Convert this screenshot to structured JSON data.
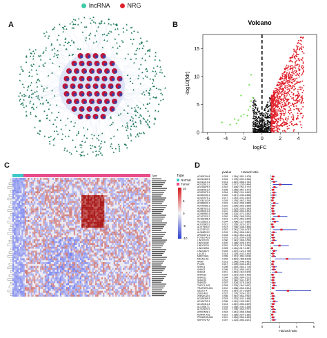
{
  "panels": {
    "a": {
      "letter": "A",
      "legend": [
        {
          "label": "lncRNA",
          "color": "#3ec9a7"
        },
        {
          "label": "NRG",
          "color": "#e0212b"
        }
      ],
      "outer_color": "#1f7a5c",
      "inner_color": "#c0163a",
      "inner_dot_color": "#3d3d9e"
    },
    "b": {
      "letter": "B",
      "chart_data": {
        "type": "scatter",
        "title": "Volcano",
        "xlabel": "logFC",
        "ylabel": "-log10(fdr)",
        "xlim": [
          -6.5,
          6
        ],
        "ylim": [
          0,
          17.5
        ],
        "xticks": [
          -6,
          -4,
          -2,
          0,
          2,
          4
        ],
        "yticks": [
          0,
          5,
          10,
          15
        ],
        "vline": 0,
        "series": [
          {
            "color": "#e0212b",
            "note": "up"
          },
          {
            "color": "#111111",
            "note": "ns"
          },
          {
            "color": "#7be35a",
            "note": "down"
          }
        ],
        "green_points": [
          [
            -3.5,
            1.4
          ],
          [
            -2.8,
            1.6
          ],
          [
            -4.4,
            1.8
          ],
          [
            -3.0,
            2.4
          ],
          [
            -2.3,
            2.9
          ],
          [
            -2.0,
            3.2
          ],
          [
            -1.5,
            4.0
          ],
          [
            -1.2,
            5.6
          ],
          [
            -1.0,
            6.2
          ],
          [
            -1.4,
            8.5
          ],
          [
            -1.2,
            10.3
          ],
          [
            -2.3,
            6.6
          ],
          [
            -1.6,
            3.0
          ],
          [
            -2.6,
            2.2
          ],
          [
            -1.3,
            4.6
          ]
        ]
      }
    },
    "c": {
      "letter": "C",
      "legend_title": "Type",
      "legend_items": [
        {
          "label": "Normal",
          "color": "#3ec9c9"
        },
        {
          "label": "Tumor",
          "color": "#e84d8a"
        }
      ],
      "colorbar_ticks": [
        "10",
        "5",
        "0",
        "-5",
        "-10"
      ],
      "type_label": "Type"
    },
    "d": {
      "letter": "D",
      "col_pvalue": "pvalue",
      "col_hr": "Hazard ratio",
      "xlabel": "Hazard ratio",
      "xticks": [
        "0",
        "2",
        "4",
        "6"
      ],
      "rows": [
        {
          "gene": "AC008764.8",
          "p": "0.003",
          "hr": "1.264(1.081-1.478)",
          "v": 1.26,
          "lo": 1.08,
          "hi": 1.48
        },
        {
          "gene": "AC011462.3",
          "p": "0.016",
          "hr": "1.178(1.031-1.346)",
          "v": 1.18,
          "lo": 1.03,
          "hi": 1.35
        },
        {
          "gene": "AC012213.3",
          "p": "0.014",
          "hr": "1.367(1.066-1.753)",
          "v": 1.37,
          "lo": 1.07,
          "hi": 1.75
        },
        {
          "gene": "AC015813.1",
          "p": "0.006",
          "hr": "2.077(1.235-3.494)",
          "v": 2.08,
          "lo": 1.24,
          "hi": 3.49
        },
        {
          "gene": "AC016876.2",
          "p": "0.001",
          "hr": "1.428(1.151-1.772)",
          "v": 1.43,
          "lo": 1.15,
          "hi": 1.77
        },
        {
          "gene": "AC020911.2",
          "p": "0.009",
          "hr": "1.248(1.057-1.474)",
          "v": 1.25,
          "lo": 1.06,
          "hi": 1.47
        },
        {
          "gene": "AC022679.1",
          "p": "0.004",
          "hr": "1.353(1.101-1.663)",
          "v": 1.35,
          "lo": 1.1,
          "hi": 1.66
        },
        {
          "gene": "AC023043.1",
          "p": "0.022",
          "hr": "1.317(1.040-1.668)",
          "v": 1.32,
          "lo": 1.04,
          "hi": 1.67
        },
        {
          "gene": "AC024575.1",
          "p": "0.017",
          "hr": "1.251(1.041-1.504)",
          "v": 1.25,
          "lo": 1.04,
          "hi": 1.5
        },
        {
          "gene": "AC034102.8",
          "p": "0.003",
          "hr": "1.193(1.062-1.340)",
          "v": 1.19,
          "lo": 1.06,
          "hi": 1.34
        },
        {
          "gene": "AC068631.2",
          "p": "0.019",
          "hr": "1.412(1.058-1.885)",
          "v": 1.41,
          "lo": 1.06,
          "hi": 1.89
        },
        {
          "gene": "AC079089.1",
          "p": "0.010",
          "hr": "1.290(1.063-1.566)",
          "v": 1.29,
          "lo": 1.06,
          "hi": 1.57
        },
        {
          "gene": "AC087623.3",
          "p": "0.016",
          "hr": "1.203(1.035-1.399)",
          "v": 1.2,
          "lo": 1.04,
          "hi": 1.4
        },
        {
          "gene": "AC093010.3",
          "p": "0.011",
          "hr": "1.254(1.053-1.493)",
          "v": 1.25,
          "lo": 1.05,
          "hi": 1.49
        },
        {
          "gene": "AC099850.3",
          "p": "0.008",
          "hr": "1.302(1.072-1.582)",
          "v": 1.3,
          "lo": 1.07,
          "hi": 1.58
        },
        {
          "gene": "AC107021.2",
          "p": "0.002",
          "hr": "1.925(1.269-2.920)",
          "v": 1.93,
          "lo": 1.27,
          "hi": 2.92
        },
        {
          "gene": "AC108488.4",
          "p": "0.013",
          "hr": "1.277(1.053-1.549)",
          "v": 1.28,
          "lo": 1.05,
          "hi": 1.55
        },
        {
          "gene": "AC115619.1",
          "p": "0.004",
          "hr": "1.458(1.127-1.886)",
          "v": 1.46,
          "lo": 1.13,
          "hi": 1.89
        },
        {
          "gene": "AL031985.3",
          "p": "0.021",
          "hr": "1.165(1.023-1.327)",
          "v": 1.17,
          "lo": 1.02,
          "hi": 1.33
        },
        {
          "gene": "AL117336.3",
          "p": "0.012",
          "hr": "1.236(1.048-1.458)",
          "v": 1.24,
          "lo": 1.05,
          "hi": 1.46
        },
        {
          "gene": "AL121974.1",
          "p": "0.007",
          "hr": "2.241(1.244-4.037)",
          "v": 2.24,
          "lo": 1.24,
          "hi": 4.04
        },
        {
          "gene": "AL365203.2",
          "p": "0.015",
          "hr": "1.324(1.056-1.661)",
          "v": 1.32,
          "lo": 1.06,
          "hi": 1.66
        },
        {
          "gene": "AP003071.4",
          "p": "0.018",
          "hr": "1.211(1.034-1.418)",
          "v": 1.21,
          "lo": 1.03,
          "hi": 1.42
        },
        {
          "gene": "FOXD2-AS1",
          "p": "0.010",
          "hr": "1.272(1.059-1.528)",
          "v": 1.27,
          "lo": 1.06,
          "hi": 1.53
        },
        {
          "gene": "LINC00205",
          "p": "0.006",
          "hr": "1.343(1.088-1.658)",
          "v": 1.34,
          "lo": 1.09,
          "hi": 1.66
        },
        {
          "gene": "LINC01138",
          "p": "0.020",
          "hr": "1.188(1.028-1.373)",
          "v": 1.19,
          "lo": 1.03,
          "hi": 1.37
        },
        {
          "gene": "LINC01224",
          "p": "0.001",
          "hr": "2.012(1.312-3.086)",
          "v": 2.01,
          "lo": 1.31,
          "hi": 3.09
        },
        {
          "gene": "LINC01554",
          "p": "0.025",
          "hr": "1.144(1.017-1.287)",
          "v": 1.14,
          "lo": 1.02,
          "hi": 1.29
        },
        {
          "gene": "LINC02870",
          "p": "0.003",
          "hr": "1.397(1.123-1.738)",
          "v": 1.4,
          "lo": 1.12,
          "hi": 1.74
        },
        {
          "gene": "LUCAT1",
          "p": "0.014",
          "hr": "1.225(1.042-1.440)",
          "v": 1.23,
          "lo": 1.04,
          "hi": 1.44
        },
        {
          "gene": "MIR210HG",
          "p": "0.009",
          "hr": "1.311(1.069-1.608)",
          "v": 1.31,
          "lo": 1.07,
          "hi": 1.61
        },
        {
          "gene": "MKLN1-AS",
          "p": "0.002",
          "hr": "2.891(1.488-5.618)",
          "v": 2.89,
          "lo": 1.49,
          "hi": 5.62
        },
        {
          "gene": "NRAV",
          "p": "0.013",
          "hr": "1.246(1.048-1.481)",
          "v": 1.25,
          "lo": 1.05,
          "hi": 1.48
        },
        {
          "gene": "PCAT6",
          "p": "0.017",
          "hr": "1.199(1.033-1.391)",
          "v": 1.2,
          "lo": 1.03,
          "hi": 1.39
        },
        {
          "gene": "SNHG1",
          "p": "0.008",
          "hr": "1.364(1.084-1.716)",
          "v": 1.36,
          "lo": 1.08,
          "hi": 1.72
        },
        {
          "gene": "SNHG3",
          "p": "0.005",
          "hr": "1.321(1.089-1.602)",
          "v": 1.32,
          "lo": 1.09,
          "hi": 1.6
        },
        {
          "gene": "SNHG4",
          "p": "0.011",
          "hr": "1.612(1.116-2.329)",
          "v": 1.61,
          "lo": 1.12,
          "hi": 2.33
        },
        {
          "gene": "SNHG10",
          "p": "0.019",
          "hr": "1.214(1.032-1.428)",
          "v": 1.21,
          "lo": 1.03,
          "hi": 1.43
        },
        {
          "gene": "SNHG12",
          "p": "0.004",
          "hr": "1.285(1.084-1.523)",
          "v": 1.29,
          "lo": 1.08,
          "hi": 1.52
        },
        {
          "gene": "SNHG16",
          "p": "0.016",
          "hr": "1.240(1.041-1.477)",
          "v": 1.24,
          "lo": 1.04,
          "hi": 1.48
        },
        {
          "gene": "SNHG20",
          "p": "0.007",
          "hr": "1.304(1.075-1.582)",
          "v": 1.3,
          "lo": 1.08,
          "hi": 1.58
        },
        {
          "gene": "TMCC1-AS1",
          "p": "0.003",
          "hr": "1.376(1.116-1.697)",
          "v": 1.38,
          "lo": 1.12,
          "hi": 1.7
        },
        {
          "gene": "TRAF3IP2-AS1",
          "p": "0.012",
          "hr": "1.258(1.052-1.504)",
          "v": 1.26,
          "lo": 1.05,
          "hi": 1.5
        },
        {
          "gene": "U62317.4",
          "p": "0.001",
          "hr": "2.987(1.571-5.680)",
          "v": 2.99,
          "lo": 1.57,
          "hi": 5.68
        },
        {
          "gene": "ZEB1-AS1",
          "p": "0.022",
          "hr": "1.176(1.024-1.351)",
          "v": 1.18,
          "lo": 1.02,
          "hi": 1.35
        },
        {
          "gene": "ZFPM2-AS1",
          "p": "0.009",
          "hr": "1.281(1.064-1.542)",
          "v": 1.28,
          "lo": 1.06,
          "hi": 1.54
        },
        {
          "gene": "AC026369.3",
          "p": "0.015",
          "hr": "1.231(1.041-1.456)",
          "v": 1.23,
          "lo": 1.04,
          "hi": 1.46
        },
        {
          "gene": "AC104793.1",
          "p": "0.006",
          "hr": "1.412(1.103-1.807)",
          "v": 1.41,
          "lo": 1.1,
          "hi": 1.81
        },
        {
          "gene": "AC124312.2",
          "p": "0.013",
          "hr": "1.267(1.050-1.529)",
          "v": 1.27,
          "lo": 1.05,
          "hi": 1.53
        },
        {
          "gene": "AL139287.1",
          "p": "0.018",
          "hr": "1.186(1.030-1.366)",
          "v": 1.19,
          "lo": 1.03,
          "hi": 1.37
        },
        {
          "gene": "AL161935.3",
          "p": "0.010",
          "hr": "1.295(1.063-1.577)",
          "v": 1.3,
          "lo": 1.06,
          "hi": 1.58
        },
        {
          "gene": "AP001528.1",
          "p": "0.004",
          "hr": "1.341(1.098-1.638)",
          "v": 1.34,
          "lo": 1.1,
          "hi": 1.64
        },
        {
          "gene": "KDM4A-AS1",
          "p": "0.021",
          "hr": "1.168(1.024-1.332)",
          "v": 1.17,
          "lo": 1.02,
          "hi": 1.33
        },
        {
          "gene": "PRKAR1B-AS2",
          "p": "0.011",
          "hr": "1.254(1.053-1.493)",
          "v": 1.25,
          "lo": 1.05,
          "hi": 1.49
        },
        {
          "gene": "SEPTIN7P2",
          "p": "0.007",
          "hr": "1.323(1.080-1.621)",
          "v": 1.32,
          "lo": 1.08,
          "hi": 1.62
        }
      ]
    }
  }
}
